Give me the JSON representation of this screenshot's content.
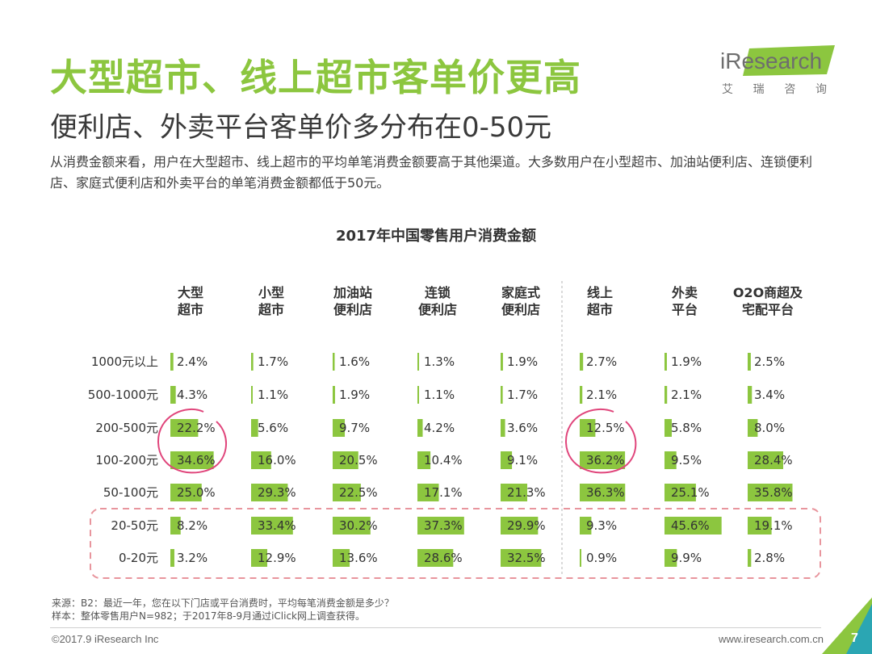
{
  "slide": {
    "title": "大型超市、线上超市客单价更高",
    "subtitle": "便利店、外卖平台客单价多分布在0-50元",
    "description": "从消费金额来看，用户在大型超市、线上超市的平均单笔消费金额要高于其他渠道。大多数用户在小型超市、加油站便利店、连锁便利店、家庭式便利店和外卖平台的单笔消费金额都低于50元。",
    "source_line1": "来源：B2：最近一年，您在以下门店或平台消费时，平均每笔消费金额是多少？",
    "source_line2": "样本：整体零售用户N=982；于2017年8-9月通过iClick网上调查获得。",
    "copyright": "©2017.9 iResearch Inc",
    "website": "www.iresearch.com.cn",
    "page_number": "7"
  },
  "logo": {
    "word": "iResearch",
    "sub": [
      "艾",
      "瑞",
      "咨",
      "询"
    ]
  },
  "colors": {
    "accent": "#8cc63f",
    "bar": "#8cc63f",
    "circle": "#e0457b",
    "dash_box": "#e8959d"
  },
  "chart_data": {
    "type": "table",
    "title": "2017年中国零售用户消费金额",
    "columns": [
      {
        "line1": "大型",
        "line2": "超市"
      },
      {
        "line1": "小型",
        "line2": "超市"
      },
      {
        "line1": "加油站",
        "line2": "便利店"
      },
      {
        "line1": "连锁",
        "line2": "便利店"
      },
      {
        "line1": "家庭式",
        "line2": "便利店"
      },
      {
        "line1": "线上",
        "line2": "超市"
      },
      {
        "line1": "外卖",
        "line2": "平台"
      },
      {
        "line1": "O2O商超及",
        "line2": "宅配平台"
      }
    ],
    "rows": [
      "1000元以上",
      "500-1000元",
      "200-500元",
      "100-200元",
      "50-100元",
      "20-50元",
      "0-20元"
    ],
    "values": [
      [
        2.4,
        1.7,
        1.6,
        1.3,
        1.9,
        2.7,
        1.9,
        2.5
      ],
      [
        4.3,
        1.1,
        1.9,
        1.1,
        1.7,
        2.1,
        2.1,
        3.4
      ],
      [
        22.2,
        5.6,
        9.7,
        4.2,
        3.6,
        12.5,
        5.8,
        8.0
      ],
      [
        34.6,
        16.0,
        20.5,
        10.4,
        9.1,
        36.2,
        9.5,
        28.4
      ],
      [
        25.0,
        29.3,
        22.5,
        17.1,
        21.3,
        36.3,
        25.1,
        35.8
      ],
      [
        8.2,
        33.4,
        30.2,
        37.3,
        29.9,
        9.3,
        45.6,
        19.1
      ],
      [
        3.2,
        12.9,
        13.6,
        28.6,
        32.5,
        0.9,
        9.9,
        2.8
      ]
    ],
    "unit": "%"
  }
}
